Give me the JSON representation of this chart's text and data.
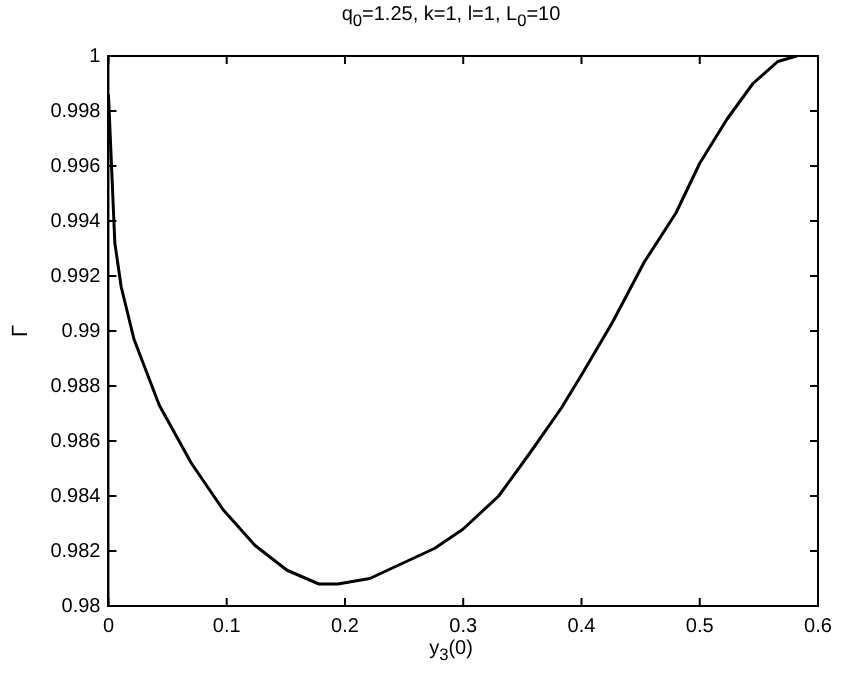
{
  "chart_data": {
    "type": "line",
    "title": "q$_{0}$=1.25, k=1, l=1, L$_{0}$=10",
    "xlabel": "y$_{3}$(0)",
    "ylabel": "Γ",
    "x": [
      0,
      0.0027,
      0.0054,
      0.0108,
      0.0216,
      0.043,
      0.07,
      0.097,
      0.124,
      0.151,
      0.178,
      0.194,
      0.221,
      0.276,
      0.3,
      0.33,
      0.357,
      0.383,
      0.4,
      0.426,
      0.453,
      0.48,
      0.5,
      0.523,
      0.545,
      0.566,
      0.582
    ],
    "series": [
      {
        "color": "#000000",
        "values": [
          0.9986,
          0.9959,
          0.9932,
          0.9916,
          0.9897,
          0.9873,
          0.9852,
          0.9835,
          0.9822,
          0.9813,
          0.9808,
          0.9808,
          0.981,
          0.9821,
          0.9828,
          0.984,
          0.9856,
          0.9872,
          0.9884,
          0.9903,
          0.9925,
          0.9943,
          0.9961,
          0.9977,
          0.999,
          0.9998,
          1.0
        ]
      }
    ],
    "xlim": [
      0,
      0.6
    ],
    "xticks": [
      0,
      0.1,
      0.2,
      0.3,
      0.4,
      0.5,
      0.6
    ],
    "ylim": [
      0.98,
      1
    ],
    "yticks": [
      0.98,
      0.982,
      0.984,
      0.986,
      0.988,
      0.99,
      0.992,
      0.994,
      0.996,
      0.998,
      1
    ],
    "grid": false,
    "legend": false,
    "marker": "none",
    "line_style": "solid"
  }
}
